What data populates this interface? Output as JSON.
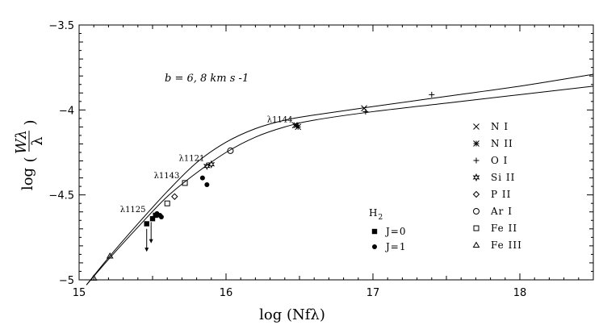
{
  "chart_data": {
    "type": "scatter",
    "xlabel": "log (Nfλ)",
    "ylabel_prefix": "log",
    "ylabel_numerator": "Wλ",
    "ylabel_denominator": "λ",
    "xlim": [
      15.0,
      18.5
    ],
    "ylim": [
      -5.0,
      -3.5
    ],
    "x_ticks": [
      15,
      16,
      17,
      18
    ],
    "x_tick_labels": [
      "15",
      "16",
      "17",
      "18"
    ],
    "y_ticks": [
      -5.0,
      -4.5,
      -4.0,
      -3.5
    ],
    "y_tick_labels": [
      "-5",
      "-4.5",
      "-4",
      "-3.5"
    ],
    "grid": false,
    "annotation": "b =  6, 8 km s -1",
    "line_labels": [
      {
        "text": "λ1144",
        "x": 16.47,
        "y": -4.09
      },
      {
        "text": "λ1121",
        "x": 15.87,
        "y": -4.32
      },
      {
        "text": "λ1143",
        "x": 15.7,
        "y": -4.42
      },
      {
        "text": "λ1125",
        "x": 15.47,
        "y": -4.62
      }
    ],
    "curves": [
      {
        "b": 6,
        "points": [
          [
            15.05,
            -5.03
          ],
          [
            15.2,
            -4.88
          ],
          [
            15.4,
            -4.69
          ],
          [
            15.6,
            -4.51
          ],
          [
            15.8,
            -4.37
          ],
          [
            16.0,
            -4.25
          ],
          [
            16.2,
            -4.16
          ],
          [
            16.4,
            -4.1
          ],
          [
            16.6,
            -4.06
          ],
          [
            17.0,
            -4.01
          ],
          [
            17.5,
            -3.96
          ],
          [
            18.0,
            -3.91
          ],
          [
            18.5,
            -3.86
          ]
        ]
      },
      {
        "b": 8,
        "points": [
          [
            15.05,
            -5.03
          ],
          [
            15.2,
            -4.87
          ],
          [
            15.4,
            -4.67
          ],
          [
            15.6,
            -4.48
          ],
          [
            15.8,
            -4.31
          ],
          [
            16.0,
            -4.19
          ],
          [
            16.2,
            -4.11
          ],
          [
            16.4,
            -4.06
          ],
          [
            16.6,
            -4.03
          ],
          [
            17.0,
            -3.98
          ],
          [
            17.5,
            -3.92
          ],
          [
            18.0,
            -3.86
          ],
          [
            18.5,
            -3.79
          ]
        ]
      }
    ],
    "legend_species": [
      {
        "label": "N I",
        "marker": "x"
      },
      {
        "label": "N II",
        "marker": "asterisk"
      },
      {
        "label": "O I",
        "marker": "plus"
      },
      {
        "label": "Si II",
        "marker": "star"
      },
      {
        "label": "P II",
        "marker": "diamond"
      },
      {
        "label": "Ar I",
        "marker": "circle"
      },
      {
        "label": "Fe II",
        "marker": "square"
      },
      {
        "label": "Fe III",
        "marker": "triangle"
      }
    ],
    "h2_legend": {
      "title": "H",
      "title_sub": "2",
      "entries": [
        {
          "label": "J=0",
          "marker": "filled-square"
        },
        {
          "label": "J=1",
          "marker": "filled-circle"
        }
      ]
    },
    "series": [
      {
        "name": "N I",
        "marker": "x",
        "points": [
          [
            16.94,
            -3.99
          ],
          [
            16.47,
            -4.09
          ]
        ]
      },
      {
        "name": "N II",
        "marker": "asterisk",
        "points": [
          [
            16.48,
            -4.09
          ],
          [
            16.49,
            -4.1
          ]
        ]
      },
      {
        "name": "O I",
        "marker": "plus",
        "points": [
          [
            16.95,
            -4.01
          ],
          [
            17.4,
            -3.91
          ]
        ]
      },
      {
        "name": "Si II",
        "marker": "star",
        "points": [
          [
            15.87,
            -4.33
          ],
          [
            15.9,
            -4.32
          ]
        ]
      },
      {
        "name": "P II",
        "marker": "diamond",
        "points": [
          [
            15.65,
            -4.51
          ]
        ]
      },
      {
        "name": "Ar I",
        "marker": "circle",
        "points": [
          [
            16.03,
            -4.24
          ]
        ]
      },
      {
        "name": "Fe II",
        "marker": "square",
        "points": [
          [
            15.6,
            -4.55
          ],
          [
            15.72,
            -4.43
          ]
        ]
      },
      {
        "name": "Fe III",
        "marker": "triangle",
        "points": [
          [
            15.21,
            -4.86
          ],
          [
            15.1,
            -4.99
          ]
        ]
      },
      {
        "name": "J=0",
        "marker": "filled-square",
        "points": [
          [
            15.46,
            -4.67
          ],
          [
            15.5,
            -4.64
          ],
          [
            15.52,
            -4.62
          ]
        ]
      },
      {
        "name": "J=1",
        "marker": "filled-circle",
        "points": [
          [
            15.53,
            -4.61
          ],
          [
            15.55,
            -4.62
          ],
          [
            15.56,
            -4.63
          ],
          [
            15.84,
            -4.4
          ],
          [
            15.87,
            -4.44
          ]
        ]
      }
    ],
    "upper_limits": [
      {
        "x": 15.46,
        "y": -4.7,
        "length": 0.13
      },
      {
        "x": 15.49,
        "y": -4.66,
        "length": 0.12
      }
    ]
  }
}
